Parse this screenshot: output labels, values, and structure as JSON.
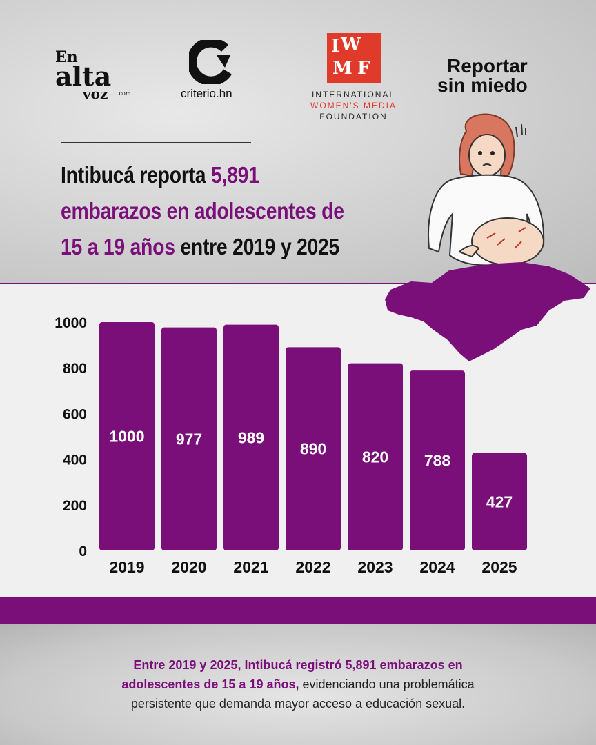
{
  "logos": {
    "enaltavoz": {
      "l1": "En",
      "l2": "alta",
      "l3": "voz",
      "l4": ".com"
    },
    "criterio": {
      "text": "criterio.hn"
    },
    "iwmf": {
      "mark": "IWMF",
      "line1": "INTERNATIONAL",
      "line2": "WOMEN'S MEDIA",
      "line3": "FOUNDATION"
    },
    "reportar": {
      "line1": "Reportar",
      "line2": "sin miedo"
    }
  },
  "headline": {
    "p1": "Intibucá reporta ",
    "p2": "5,891",
    "p3": "embarazos en adolescentes de",
    "p4": "15 a 19 años",
    "p5": " entre 2019 y 2025"
  },
  "colors": {
    "accent": "#7a0f7a",
    "iwmf_red": "#e03a2b"
  },
  "chart_data": {
    "type": "bar",
    "title": "",
    "xlabel": "",
    "ylabel": "",
    "categories": [
      "2019",
      "2020",
      "2021",
      "2022",
      "2023",
      "2024",
      "2025"
    ],
    "values": [
      1000,
      977,
      989,
      890,
      820,
      788,
      427
    ],
    "data_labels": [
      "1000",
      "977",
      "989",
      "890",
      "820",
      "788",
      "427"
    ],
    "yticks": [
      "0",
      "200",
      "400",
      "600",
      "800",
      "1000"
    ],
    "ylim": [
      0,
      1000
    ],
    "grid": false,
    "bar_color": "#7a0f7a"
  },
  "footer": {
    "bold1": "Entre 2019 y 2025, Intibucá registró 5,891 embarazos en",
    "bold2": "adolescentes de 15 a 19 años,",
    "rest1": " evidenciando una problemática",
    "rest2": "persistente que demanda mayor acceso a educación sexual."
  }
}
